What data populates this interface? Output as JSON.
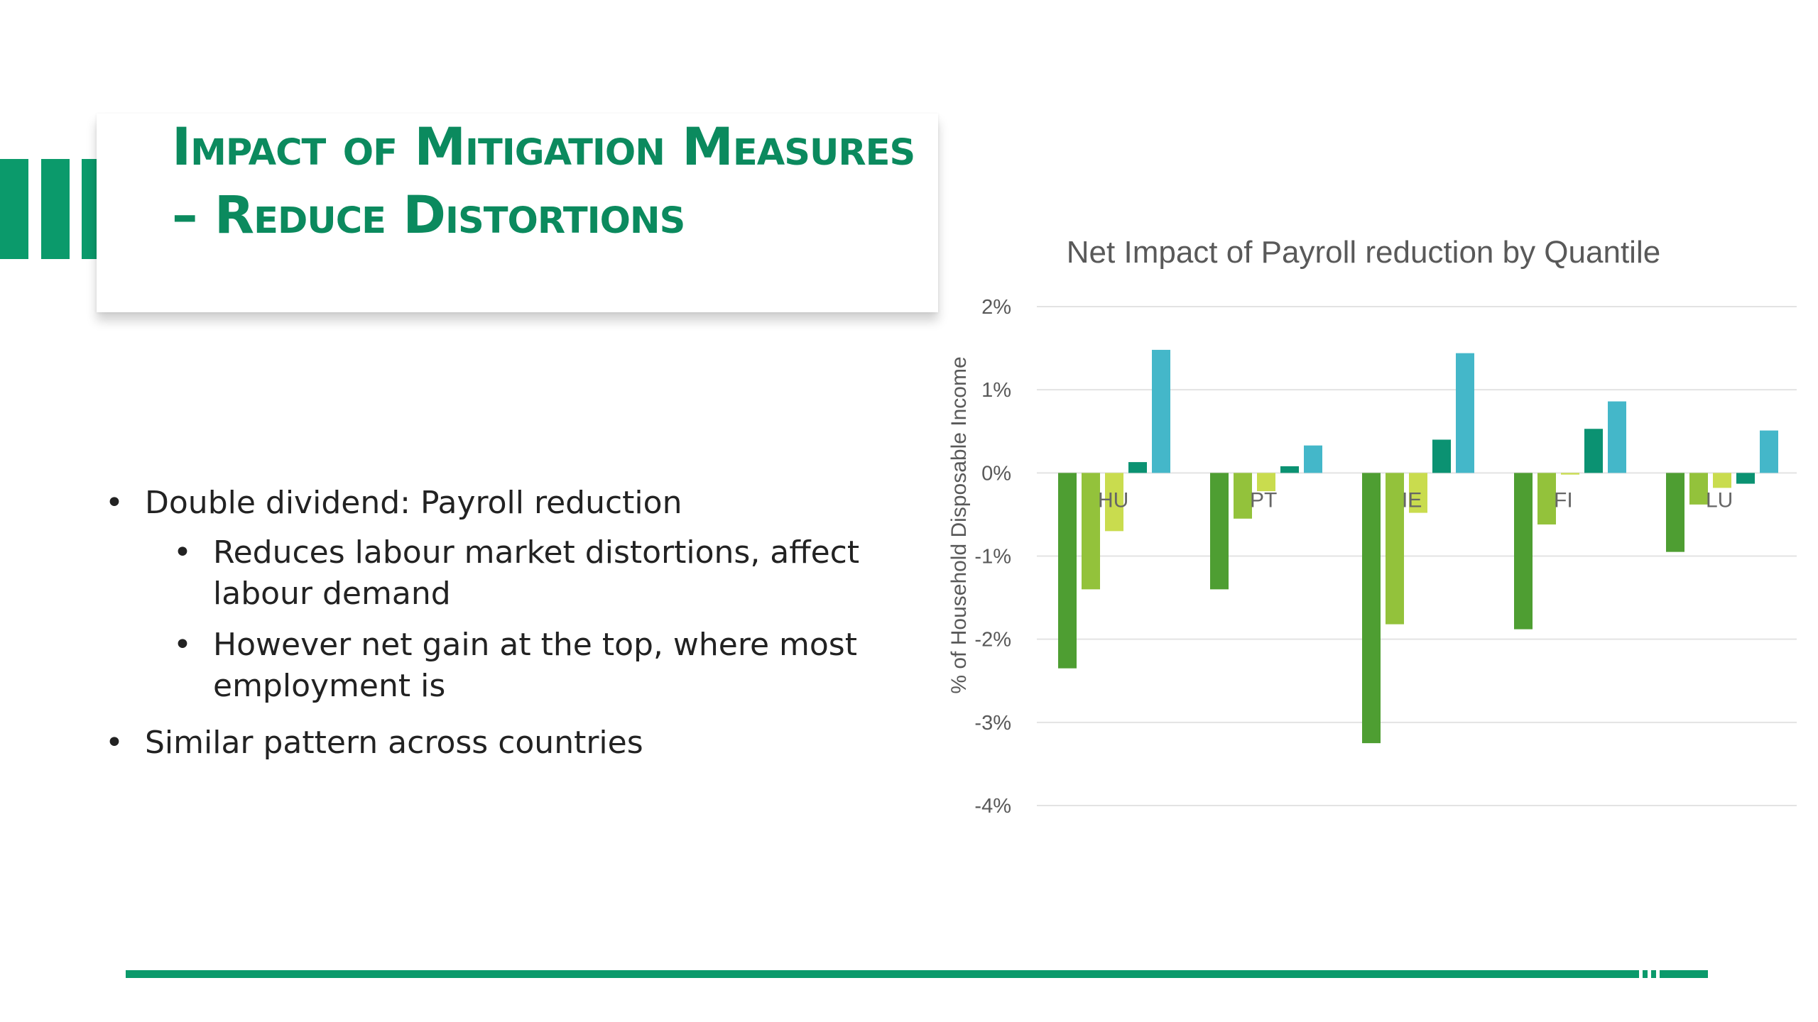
{
  "slide": {
    "title": "Impact of Mitigation Measures – Reduce Distortions",
    "bullets": [
      {
        "level": 1,
        "text": "Double dividend: Payroll reduction"
      },
      {
        "level": 2,
        "text": "Reduces labour market distortions, affect labour demand"
      },
      {
        "level": 2,
        "text": "However net gain at the top, where most employment is"
      },
      {
        "level": 1,
        "text": "Similar pattern across countries"
      }
    ],
    "bullet_symbol": "•",
    "accent_color": "#0b9a6b"
  },
  "chart_data": {
    "type": "bar",
    "title": "Net Impact of Payroll reduction by Quantile",
    "ylabel": "% of Household Disposable Income",
    "xlabel": "",
    "categories": [
      "HU",
      "PT",
      "IE",
      "FI",
      "LU"
    ],
    "series": [
      {
        "color": "#4e9e32",
        "values": [
          -2.35,
          -1.4,
          -3.25,
          -1.88,
          -0.95
        ]
      },
      {
        "color": "#93c23b",
        "values": [
          -1.4,
          -0.55,
          -1.82,
          -0.62,
          -0.38
        ]
      },
      {
        "color": "#c9dc4e",
        "values": [
          -0.7,
          -0.22,
          -0.48,
          -0.02,
          -0.18
        ]
      },
      {
        "color": "#0b9272",
        "values": [
          0.13,
          0.08,
          0.4,
          0.53,
          -0.13
        ]
      },
      {
        "color": "#44b7c9",
        "values": [
          1.48,
          0.33,
          1.44,
          0.86,
          0.51
        ]
      }
    ],
    "ylim": [
      -4,
      2
    ],
    "yticks": [
      "2%",
      "1%",
      "0%",
      "-1%",
      "-2%",
      "-3%",
      "-4%"
    ],
    "ytick_values": [
      2,
      1,
      0,
      -1,
      -2,
      -3,
      -4
    ],
    "grid": true,
    "legend": "none"
  }
}
